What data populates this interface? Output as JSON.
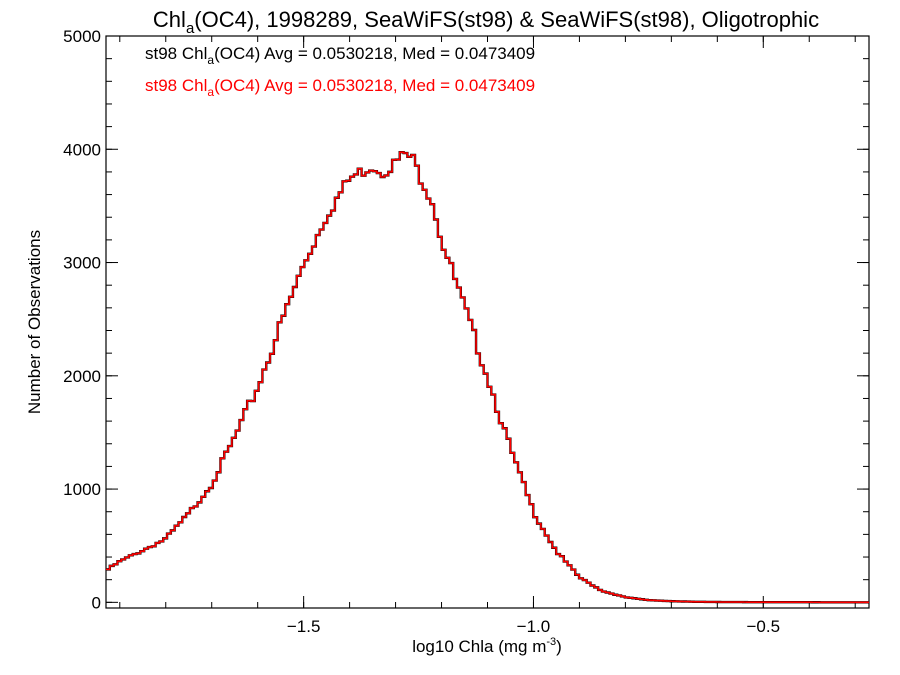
{
  "chart_data": {
    "type": "line",
    "title": {
      "main": "Chl",
      "sub": "a",
      "rest": "(OC4), 1998289, SeaWiFS(st98) & SeaWiFS(st98), Oligotrophic"
    },
    "xlabel": {
      "main": "log10 Chla (mg m",
      "sup": "-3",
      "end": ")"
    },
    "ylabel": "Number of Observations",
    "xlim": [
      -1.93,
      -0.27
    ],
    "ylim": [
      -50,
      5000
    ],
    "x_ticks": [
      -1.5,
      -1.0,
      -0.5
    ],
    "x_tick_labels": [
      "−1.5",
      "−1.0",
      "−0.5"
    ],
    "y_ticks": [
      0,
      1000,
      2000,
      3000,
      4000,
      5000
    ],
    "y_tick_labels": [
      "0",
      "1000",
      "2000",
      "3000",
      "4000",
      "5000"
    ],
    "annotations": [
      {
        "color": "#000000",
        "prefix": "st98 Chl",
        "sub": "a",
        "suffix": "(OC4) Avg = 0.0530218, Med = 0.0473409"
      },
      {
        "color": "#ff0000",
        "prefix": "st98 Chl",
        "sub": "a",
        "suffix": "(OC4) Avg = 0.0530218, Med = 0.0473409"
      }
    ],
    "series": [
      {
        "color": "#000000",
        "x": [
          -1.93,
          -1.9,
          -1.85,
          -1.8,
          -1.75,
          -1.7,
          -1.65,
          -1.6,
          -1.55,
          -1.5,
          -1.45,
          -1.4,
          -1.35,
          -1.33,
          -1.3,
          -1.28,
          -1.26,
          -1.25,
          -1.22,
          -1.2,
          -1.15,
          -1.1,
          -1.05,
          -1.0,
          -0.95,
          -0.9,
          -0.85,
          -0.8,
          -0.75,
          -0.7,
          -0.65,
          -0.6,
          -0.55,
          -0.5,
          -0.45,
          -0.4,
          -0.35,
          -0.3,
          -0.27
        ],
        "y": [
          280,
          360,
          460,
          560,
          780,
          1050,
          1450,
          1900,
          2450,
          2980,
          3420,
          3740,
          3860,
          3800,
          3880,
          3960,
          3900,
          3790,
          3550,
          3200,
          2600,
          2000,
          1350,
          800,
          450,
          220,
          100,
          45,
          20,
          10,
          5,
          3,
          2,
          1,
          1,
          1,
          0,
          0,
          0
        ]
      },
      {
        "color": "#ff0000",
        "x": [
          -1.93,
          -1.9,
          -1.85,
          -1.8,
          -1.75,
          -1.7,
          -1.65,
          -1.6,
          -1.55,
          -1.5,
          -1.45,
          -1.4,
          -1.35,
          -1.33,
          -1.3,
          -1.28,
          -1.26,
          -1.25,
          -1.22,
          -1.2,
          -1.15,
          -1.1,
          -1.05,
          -1.0,
          -0.95,
          -0.9,
          -0.85,
          -0.8,
          -0.75,
          -0.7,
          -0.65,
          -0.6,
          -0.55,
          -0.5,
          -0.45,
          -0.4,
          -0.35,
          -0.3,
          -0.27
        ],
        "y": [
          280,
          360,
          460,
          560,
          780,
          1050,
          1450,
          1900,
          2450,
          2980,
          3420,
          3740,
          3860,
          3800,
          3880,
          3960,
          3900,
          3790,
          3550,
          3200,
          2600,
          2000,
          1350,
          800,
          450,
          220,
          100,
          45,
          20,
          10,
          5,
          3,
          2,
          1,
          1,
          1,
          0,
          0,
          0
        ]
      }
    ]
  }
}
